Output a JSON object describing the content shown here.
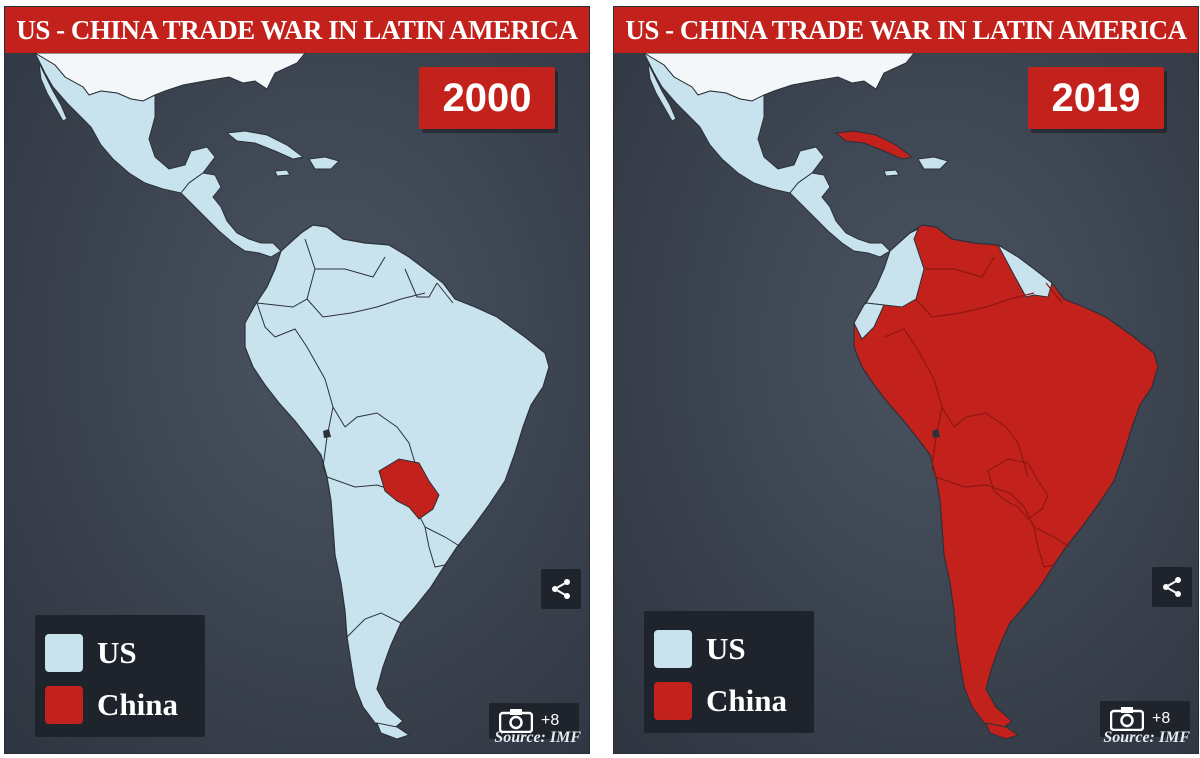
{
  "colors": {
    "us": "#c9e3ee",
    "china": "#c2211c",
    "ocean": "#3b4350",
    "border": "#2b3139",
    "panel_dark": "#1f242c"
  },
  "panels": [
    {
      "title": "US - CHINA TRADE WAR IN LATIN AMERICA",
      "year": "2000",
      "legend": {
        "us_label": "US",
        "china_label": "China"
      },
      "gallery_count": "+8",
      "source": "Source: IMF",
      "icons": {
        "share": "share-icon",
        "gallery": "camera-icon"
      },
      "china_countries": [
        "Paraguay"
      ]
    },
    {
      "title": "US - CHINA TRADE WAR IN LATIN AMERICA",
      "year": "2019",
      "legend": {
        "us_label": "US",
        "china_label": "China"
      },
      "gallery_count": "+8",
      "source": "Source: IMF",
      "icons": {
        "share": "share-icon",
        "gallery": "camera-icon"
      },
      "china_countries": [
        "Cuba",
        "Venezuela",
        "Brazil",
        "Peru",
        "Bolivia",
        "Chile",
        "Argentina",
        "Uruguay",
        "Paraguay"
      ]
    }
  ]
}
